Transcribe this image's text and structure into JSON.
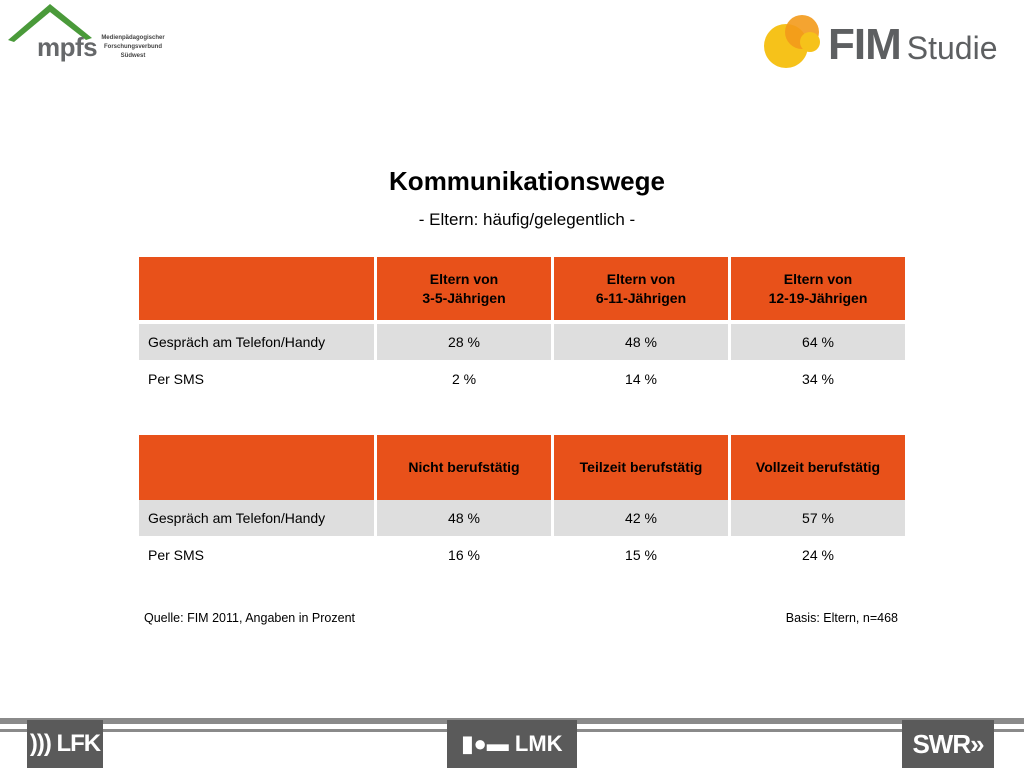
{
  "logos": {
    "mpfs_word": "mpfs",
    "mpfs_lines": [
      "Medienpädagogischer",
      "Forschungsverbund",
      "Südwest"
    ],
    "fim_bold": "FIM",
    "fim_light": "Studie"
  },
  "title": "Kommunikationswege",
  "subtitle": "- Eltern: häufig/gelegentlich -",
  "table1": {
    "headers": [
      {
        "line1": "Eltern von",
        "line2": "3-5-Jährigen"
      },
      {
        "line1": "Eltern von",
        "line2": "6-11-Jährigen"
      },
      {
        "line1": "Eltern von",
        "line2": "12-19-Jährigen"
      }
    ],
    "rows": [
      {
        "label": "Gespräch am Telefon/Handy",
        "values": [
          "28 %",
          "48 %",
          "64 %"
        ]
      },
      {
        "label": "Per SMS",
        "values": [
          "2 %",
          "14 %",
          "34 %"
        ]
      }
    ]
  },
  "table2": {
    "headers": [
      "Nicht berufstätig",
      "Teilzeit berufstätig",
      "Vollzeit berufstätig"
    ],
    "rows": [
      {
        "label": "Gespräch am Telefon/Handy",
        "values": [
          "48 %",
          "42 %",
          "57 %"
        ]
      },
      {
        "label": "Per SMS",
        "values": [
          "16 %",
          "15 %",
          "24 %"
        ]
      }
    ]
  },
  "source": "Quelle: FIM 2011,  Angaben in Prozent",
  "basis": "Basis: Eltern, n=468",
  "footer": {
    "lfk": "))) LFK",
    "lmk": "▮●▬ LMK",
    "swr": "SWR»"
  },
  "colors": {
    "header_orange": "#e8511a",
    "row_shade": "#dedede",
    "footer_gray": "#5a5a5a",
    "mpfs_green": "#4a9a3a",
    "fim_yellow": "#f6c21a",
    "fim_orange": "#f39a1b"
  }
}
